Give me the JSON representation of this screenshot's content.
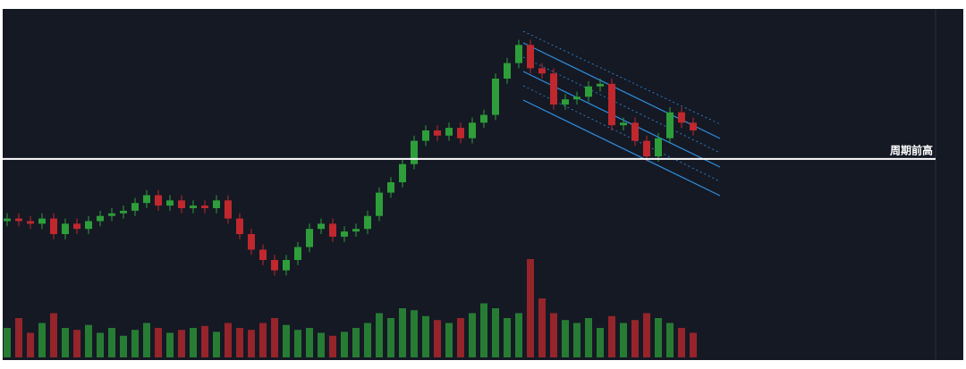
{
  "chart_data": {
    "type": "candlestick",
    "annotation": {
      "text": "周期前高",
      "value": 49
    },
    "open": [
      25,
      26,
      25,
      24,
      26,
      20,
      24,
      22,
      25,
      27,
      28,
      29,
      32,
      35,
      31,
      33,
      30,
      31,
      30,
      33,
      26,
      20,
      14,
      10,
      6,
      10,
      15,
      22,
      24,
      19,
      21,
      22,
      27,
      36,
      40,
      47,
      56,
      60,
      58,
      61,
      57,
      63,
      66,
      80,
      86,
      93,
      84,
      82,
      70,
      72,
      73,
      77,
      78,
      62,
      63,
      56,
      50,
      57,
      67,
      63
    ],
    "high": [
      28,
      28,
      27,
      28,
      28,
      26,
      26,
      27,
      29,
      30,
      31,
      34,
      37,
      37,
      35,
      35,
      33,
      33,
      35,
      35,
      28,
      22,
      16,
      12,
      12,
      17,
      24,
      26,
      26,
      23,
      24,
      29,
      38,
      42,
      49,
      58,
      62,
      62,
      63,
      63,
      65,
      68,
      82,
      88,
      95,
      95,
      86,
      84,
      74,
      75,
      79,
      80,
      80,
      65,
      65,
      58,
      59,
      69,
      69,
      65
    ],
    "low": [
      23,
      23,
      22,
      22,
      18,
      18,
      20,
      20,
      23,
      25,
      26,
      27,
      30,
      29,
      29,
      28,
      28,
      28,
      28,
      24,
      18,
      12,
      8,
      4,
      4,
      8,
      13,
      20,
      17,
      17,
      19,
      20,
      25,
      34,
      38,
      45,
      54,
      56,
      56,
      55,
      55,
      61,
      64,
      78,
      84,
      82,
      80,
      68,
      68,
      70,
      71,
      75,
      60,
      60,
      54,
      48,
      48,
      55,
      61,
      58
    ],
    "close": [
      26,
      25,
      24,
      26,
      20,
      24,
      22,
      25,
      27,
      28,
      29,
      32,
      35,
      31,
      33,
      30,
      31,
      30,
      33,
      26,
      20,
      14,
      10,
      6,
      10,
      15,
      22,
      24,
      19,
      21,
      22,
      27,
      36,
      40,
      47,
      56,
      60,
      58,
      61,
      57,
      63,
      66,
      80,
      86,
      93,
      84,
      82,
      70,
      72,
      73,
      77,
      78,
      62,
      63,
      56,
      50,
      57,
      67,
      63,
      60
    ],
    "volume": [
      30,
      40,
      25,
      35,
      45,
      30,
      28,
      33,
      25,
      30,
      22,
      28,
      35,
      30,
      25,
      28,
      30,
      32,
      26,
      35,
      30,
      28,
      35,
      40,
      33,
      28,
      30,
      25,
      22,
      26,
      30,
      35,
      45,
      40,
      50,
      48,
      42,
      38,
      35,
      40,
      45,
      55,
      50,
      40,
      45,
      100,
      60,
      45,
      38,
      35,
      40,
      30,
      42,
      35,
      38,
      45,
      40,
      35,
      30,
      25
    ],
    "up_color": "#2e9e3a",
    "down_color": "#c0282d",
    "ylim": [
      0,
      100
    ],
    "volume_lim": [
      0,
      100
    ]
  }
}
